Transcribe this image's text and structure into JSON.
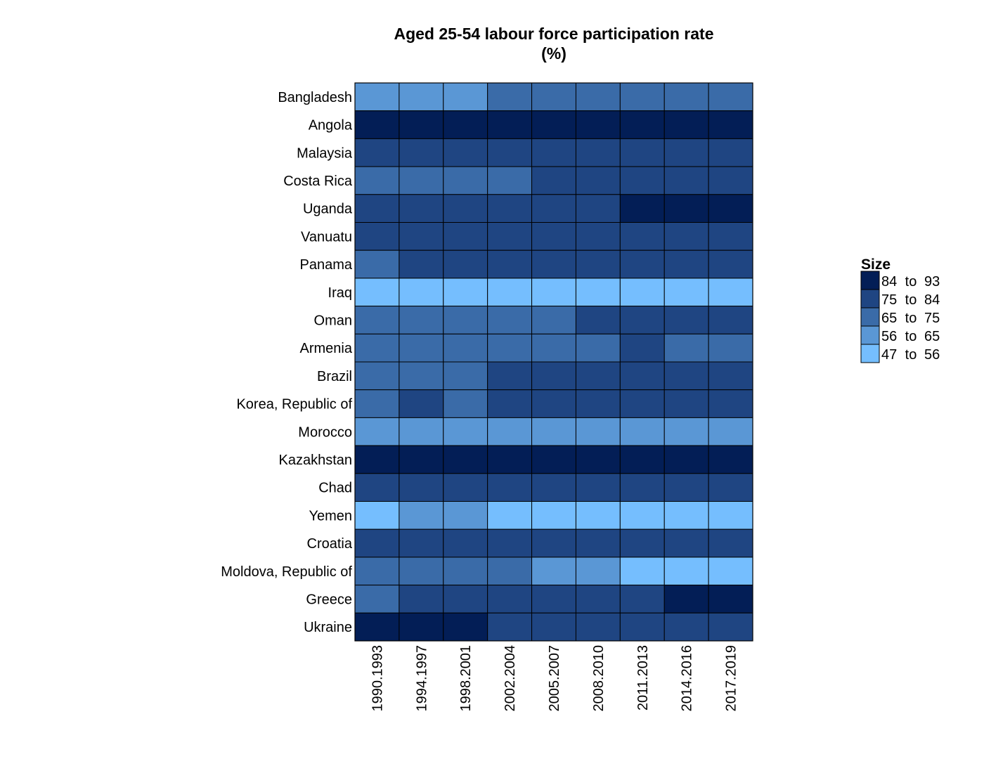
{
  "chart_data": {
    "type": "heatmap",
    "title": "Aged 25-54 labour force participation rate",
    "subtitle": "(%)",
    "x_categories": [
      "1990.1993",
      "1994.1997",
      "1998.2001",
      "2002.2004",
      "2005.2007",
      "2008.2010",
      "2011.2013",
      "2014.2016",
      "2017.2019"
    ],
    "y_categories": [
      "Bangladesh",
      "Angola",
      "Malaysia",
      "Costa Rica",
      "Uganda",
      "Vanuatu",
      "Panama",
      "Iraq",
      "Oman",
      "Armenia",
      "Brazil",
      "Korea, Republic of",
      "Morocco",
      "Kazakhstan",
      "Chad",
      "Yemen",
      "Croatia",
      "Moldova, Republic of",
      "Greece",
      "Ukraine"
    ],
    "bin_index_note_levels": [
      "47 to 56",
      "56 to 65",
      "65 to 75",
      "75 to 84",
      "84 to 93"
    ],
    "values": [
      [
        60,
        60,
        60,
        70,
        70,
        70,
        70,
        70,
        70
      ],
      [
        88,
        88,
        88,
        88,
        88,
        88,
        88,
        88,
        88
      ],
      [
        79,
        79,
        79,
        79,
        79,
        79,
        79,
        79,
        79
      ],
      [
        70,
        70,
        70,
        70,
        79,
        79,
        79,
        79,
        79
      ],
      [
        79,
        79,
        79,
        79,
        79,
        79,
        88,
        88,
        88
      ],
      [
        79,
        79,
        79,
        79,
        79,
        79,
        79,
        79,
        79
      ],
      [
        70,
        79,
        79,
        79,
        79,
        79,
        79,
        79,
        79
      ],
      [
        52,
        52,
        52,
        52,
        52,
        52,
        52,
        52,
        52
      ],
      [
        70,
        70,
        70,
        70,
        70,
        79,
        79,
        79,
        79
      ],
      [
        70,
        70,
        70,
        70,
        70,
        70,
        79,
        70,
        70
      ],
      [
        70,
        70,
        70,
        79,
        79,
        79,
        79,
        79,
        79
      ],
      [
        70,
        79,
        70,
        79,
        79,
        79,
        79,
        79,
        79
      ],
      [
        60,
        60,
        60,
        60,
        60,
        60,
        60,
        60,
        60
      ],
      [
        88,
        88,
        88,
        88,
        88,
        88,
        88,
        88,
        88
      ],
      [
        79,
        79,
        79,
        79,
        79,
        79,
        79,
        79,
        79
      ],
      [
        52,
        60,
        60,
        52,
        52,
        52,
        52,
        52,
        52
      ],
      [
        79,
        79,
        79,
        79,
        79,
        79,
        79,
        79,
        79
      ],
      [
        70,
        70,
        70,
        70,
        60,
        60,
        52,
        52,
        52
      ],
      [
        70,
        79,
        79,
        79,
        79,
        79,
        79,
        88,
        88
      ],
      [
        88,
        88,
        88,
        79,
        79,
        79,
        79,
        79,
        79
      ]
    ],
    "legend": {
      "title": "Size",
      "position": "right",
      "bins": [
        {
          "label_from": "84",
          "label_to": "93",
          "min": 84,
          "max": 93,
          "color": "#031e56"
        },
        {
          "label_from": "75",
          "label_to": "84",
          "min": 75,
          "max": 84,
          "color": "#1f4582"
        },
        {
          "label_from": "65",
          "label_to": "75",
          "min": 65,
          "max": 75,
          "color": "#3a6ba8"
        },
        {
          "label_from": "56",
          "label_to": "65",
          "min": 56,
          "max": 65,
          "color": "#5a97d5"
        },
        {
          "label_from": "47",
          "label_to": "56",
          "min": 47,
          "max": 56,
          "color": "#75befe"
        }
      ],
      "connector": "to"
    },
    "grid": false
  }
}
